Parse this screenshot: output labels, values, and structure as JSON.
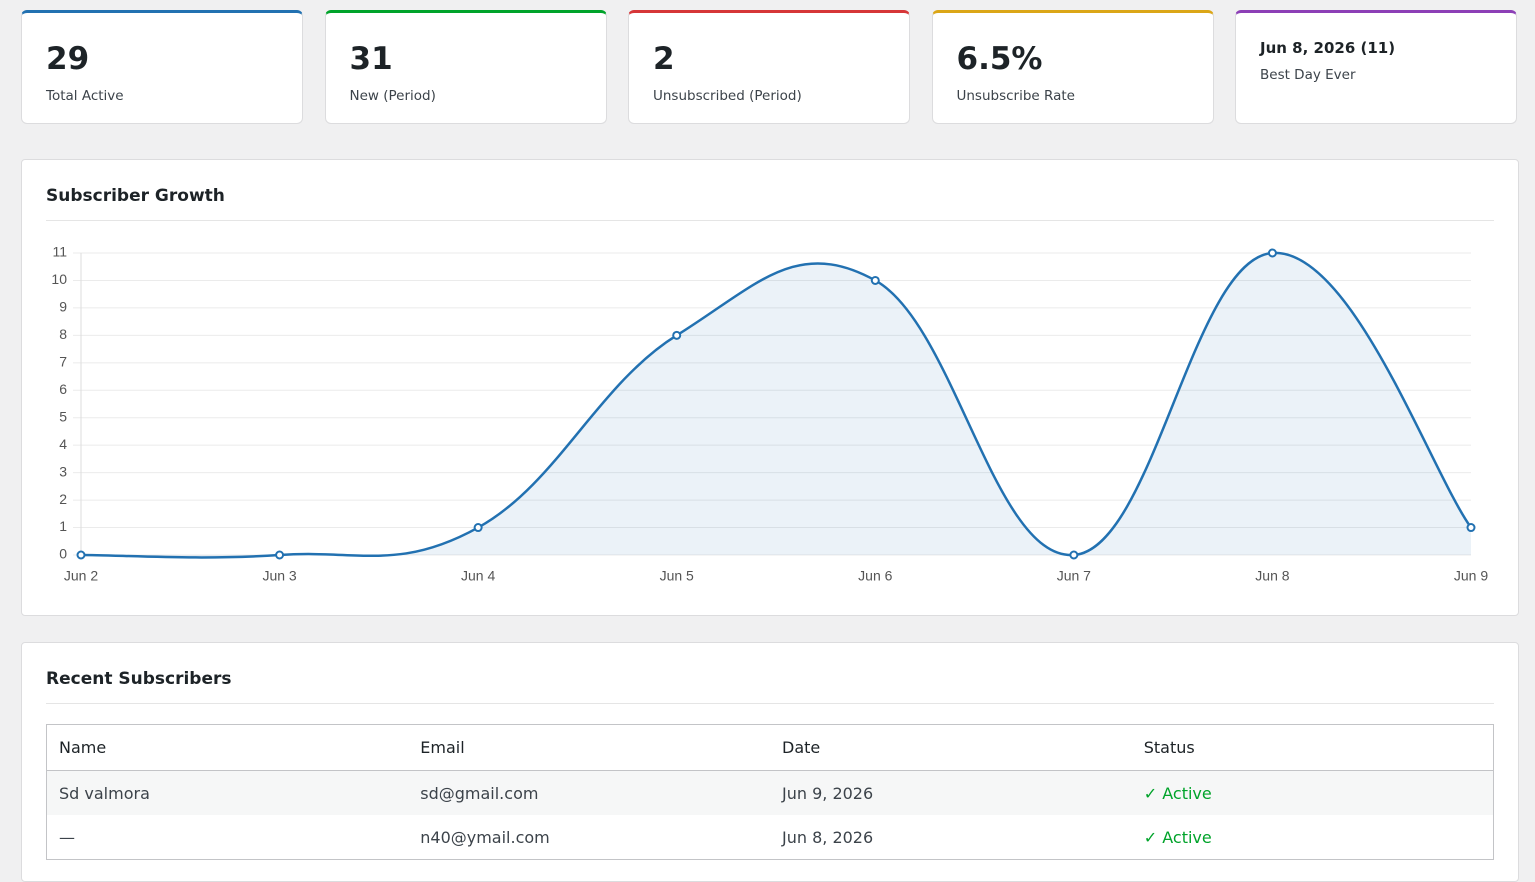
{
  "stats": [
    {
      "value": "29",
      "label": "Total Active",
      "color": "#2271b1"
    },
    {
      "value": "31",
      "label": "New (Period)",
      "color": "#00a32a"
    },
    {
      "value": "2",
      "label": "Unsubscribed (Period)",
      "color": "#d63638"
    },
    {
      "value": "6.5%",
      "label": "Unsubscribe Rate",
      "color": "#dba617"
    },
    {
      "value": "Jun 8, 2026 (11)",
      "label": "Best Day Ever",
      "color": "#8c3fb6"
    }
  ],
  "chart_data": {
    "type": "line",
    "title": "Subscriber Growth",
    "categories": [
      "Jun 2",
      "Jun 3",
      "Jun 4",
      "Jun 5",
      "Jun 6",
      "Jun 7",
      "Jun 8",
      "Jun 9"
    ],
    "values": [
      0,
      0,
      1,
      8,
      10,
      0,
      11,
      1
    ],
    "color": "#2271b1",
    "ylim": [
      0,
      11
    ],
    "yticks": [
      0,
      1,
      2,
      3,
      4,
      5,
      6,
      7,
      8,
      9,
      10,
      11
    ],
    "grid": true
  },
  "table": {
    "title": "Recent Subscribers",
    "columns": [
      "Name",
      "Email",
      "Date",
      "Status"
    ],
    "rows": [
      [
        "Sd valmora",
        "sd@gmail.com",
        "Jun 9, 2026",
        "✓ Active"
      ],
      [
        "—",
        "n40@ymail.com",
        "Jun 8, 2026",
        "✓ Active"
      ]
    ]
  }
}
